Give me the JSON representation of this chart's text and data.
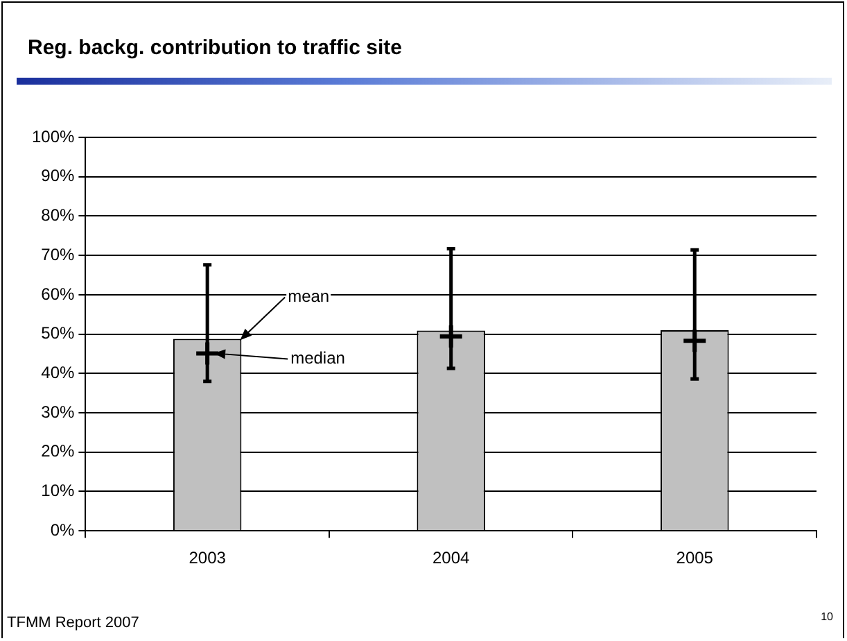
{
  "chart_data": {
    "type": "bar",
    "title": "Reg. backg. contribution to traffic site",
    "categories": [
      "2003",
      "2004",
      "2005"
    ],
    "series": [
      {
        "type": "bar",
        "color": "#c0c0c0",
        "values": [
          48.8,
          50.9,
          51.0
        ],
        "errors": [
          [
            38.0,
            67.6
          ],
          [
            41.3,
            71.7
          ],
          [
            38.6,
            71.4
          ]
        ]
      },
      {
        "type": "scatter",
        "color": "#000000",
        "values": [
          45.1,
          49.4,
          48.3
        ],
        "marker": "cross"
      }
    ],
    "ylim": [
      0,
      100
    ],
    "yticks": [
      {
        "value": 0,
        "label": "0%"
      },
      {
        "value": 10,
        "label": "10%"
      },
      {
        "value": 20,
        "label": "20%"
      },
      {
        "value": 30,
        "label": "30%"
      },
      {
        "value": 40,
        "label": "40%"
      },
      {
        "value": 50,
        "label": "50%"
      },
      {
        "value": 60,
        "label": "60%"
      },
      {
        "value": 70,
        "label": "70%"
      },
      {
        "value": 80,
        "label": "80%"
      },
      {
        "value": 90,
        "label": "90%"
      },
      {
        "value": 100,
        "label": "100%"
      }
    ],
    "grid": "y",
    "legend": false,
    "annotations": [
      "mean",
      "median",
      "TFMM Report 2007",
      "10"
    ]
  }
}
